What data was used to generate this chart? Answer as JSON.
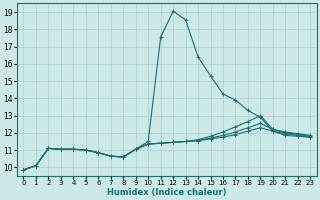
{
  "xlabel": "Humidex (Indice chaleur)",
  "bg_color": "#cce9e7",
  "grid_color": "#aad0ce",
  "line_color": "#1a7070",
  "xlim": [
    -0.5,
    23.5
  ],
  "ylim": [
    9.5,
    19.5
  ],
  "yticks": [
    10,
    11,
    12,
    13,
    14,
    15,
    16,
    17,
    18,
    19
  ],
  "xticks": [
    0,
    1,
    2,
    3,
    4,
    5,
    6,
    7,
    8,
    9,
    10,
    11,
    12,
    13,
    14,
    15,
    16,
    17,
    18,
    19,
    20,
    21,
    22,
    23
  ],
  "lines": [
    {
      "x": [
        0,
        1,
        2,
        3,
        4,
        5,
        6,
        7,
        8,
        9,
        10,
        11,
        12,
        13,
        14,
        15,
        16,
        17,
        18,
        19,
        20,
        21,
        22,
        23
      ],
      "y": [
        9.85,
        10.1,
        11.1,
        11.05,
        11.05,
        11.0,
        10.85,
        10.65,
        10.6,
        11.05,
        11.5,
        17.55,
        19.05,
        18.55,
        16.4,
        15.3,
        14.25,
        13.9,
        13.3,
        12.9,
        12.1,
        11.85,
        11.8,
        11.75
      ]
    },
    {
      "x": [
        0,
        1,
        2,
        3,
        4,
        5,
        6,
        7,
        8,
        9,
        10,
        11,
        12,
        13,
        14,
        15,
        16,
        17,
        18,
        19,
        20,
        21,
        22,
        23
      ],
      "y": [
        9.85,
        10.1,
        11.1,
        11.05,
        11.05,
        11.0,
        10.85,
        10.65,
        10.6,
        11.05,
        11.35,
        11.4,
        11.45,
        11.5,
        11.55,
        11.65,
        11.75,
        11.9,
        12.1,
        12.3,
        12.1,
        11.95,
        11.85,
        11.75
      ]
    },
    {
      "x": [
        0,
        1,
        2,
        3,
        4,
        5,
        6,
        7,
        8,
        9,
        10,
        11,
        12,
        13,
        14,
        15,
        16,
        17,
        18,
        19,
        20,
        21,
        22,
        23
      ],
      "y": [
        9.85,
        10.1,
        11.1,
        11.05,
        11.05,
        11.0,
        10.85,
        10.65,
        10.6,
        11.05,
        11.35,
        11.4,
        11.45,
        11.5,
        11.55,
        11.7,
        11.85,
        12.05,
        12.3,
        12.55,
        12.2,
        12.0,
        11.9,
        11.8
      ]
    },
    {
      "x": [
        0,
        1,
        2,
        3,
        4,
        5,
        6,
        7,
        8,
        9,
        10,
        11,
        12,
        13,
        14,
        15,
        16,
        17,
        18,
        19,
        20,
        21,
        22,
        23
      ],
      "y": [
        9.85,
        10.1,
        11.1,
        11.05,
        11.05,
        11.0,
        10.85,
        10.65,
        10.6,
        11.05,
        11.35,
        11.4,
        11.45,
        11.5,
        11.6,
        11.8,
        12.05,
        12.35,
        12.65,
        13.0,
        12.2,
        12.05,
        11.95,
        11.85
      ]
    }
  ]
}
